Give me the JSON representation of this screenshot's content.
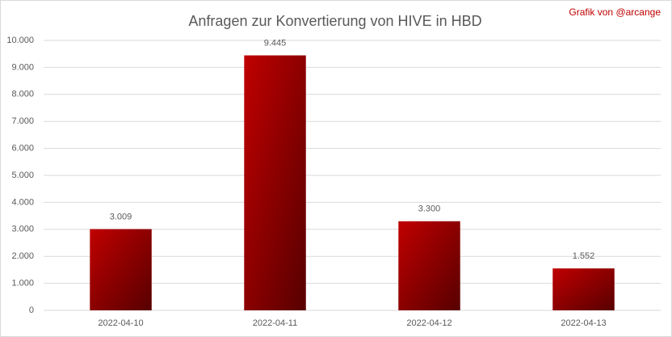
{
  "chart_data": {
    "type": "bar",
    "title": "Anfragen zur Konvertierung von HIVE in HBD",
    "annotation": "Grafik von @arcange",
    "categories": [
      "2022-04-10",
      "2022-04-11",
      "2022-04-12",
      "2022-04-13"
    ],
    "values": [
      3009,
      9445,
      3300,
      1552
    ],
    "value_labels": [
      "3.009",
      "9.445",
      "3.300",
      "1.552"
    ],
    "color": "#c00000",
    "ylim": [
      0,
      10000
    ],
    "yticks": [
      0,
      {
        "value": 1000,
        "label": "1.000"
      },
      {
        "value": 2000,
        "label": "2.000"
      },
      {
        "value": 3000,
        "label": "3.000"
      },
      {
        "value": 4000,
        "label": "4.000"
      },
      {
        "value": 5000,
        "label": "5.000"
      },
      {
        "value": 6000,
        "label": "6.000"
      },
      {
        "value": 7000,
        "label": "7.000"
      },
      {
        "value": 8000,
        "label": "8.000"
      },
      {
        "value": 9000,
        "label": "9.000"
      },
      {
        "value": 10000,
        "label": "10.000"
      }
    ],
    "grid": true
  }
}
